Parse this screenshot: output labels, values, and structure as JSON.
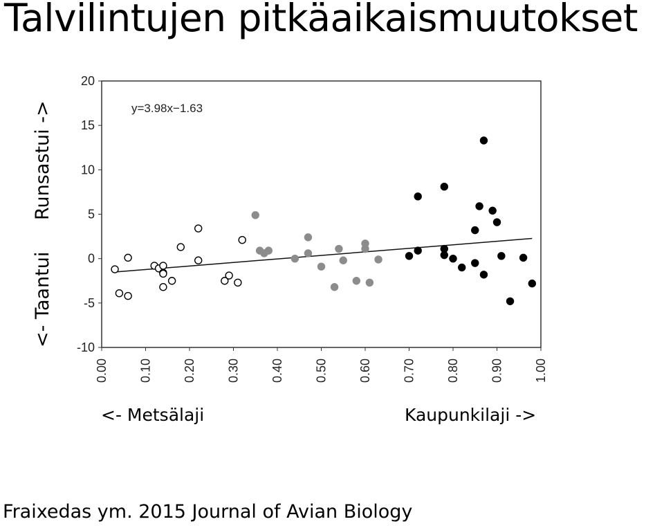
{
  "slide": {
    "title": "Talvilintujen pitkäaikaismuutokset",
    "citation": "Fraixedas ym. 2015 Journal of Avian Biology"
  },
  "axis_labels": {
    "y_up": "Runsastui ->",
    "y_down": "<- Taantui",
    "x_left": "<- Metsälaji",
    "x_right": "Kaupunkilaji ->"
  },
  "chart_data": {
    "type": "scatter",
    "title": "",
    "xlabel": "",
    "ylabel": "",
    "xlim": [
      0.0,
      1.0
    ],
    "ylim": [
      -10,
      20
    ],
    "x_ticks": [
      "0.00",
      "0.10",
      "0.20",
      "0.30",
      "0.40",
      "0.50",
      "0.60",
      "0.70",
      "0.80",
      "0.90",
      "1.00"
    ],
    "y_ticks": [
      "20",
      "15",
      "10",
      "5",
      "0",
      "-5",
      "-10"
    ],
    "grid": false,
    "legend": "none",
    "annotation": "y=3.98x−1.63",
    "trendline": {
      "slope": 3.98,
      "intercept": -1.63
    },
    "colors": {
      "open": "#ffffff",
      "grey": "#8c8c8c",
      "black": "#000000"
    },
    "series": [
      {
        "style": "open",
        "points": [
          [
            0.03,
            -1.2
          ],
          [
            0.04,
            -3.9
          ],
          [
            0.06,
            -4.2
          ],
          [
            0.06,
            0.1
          ],
          [
            0.12,
            -0.8
          ],
          [
            0.13,
            -1.1
          ],
          [
            0.14,
            -0.8
          ],
          [
            0.14,
            -1.6
          ],
          [
            0.14,
            -1.7
          ],
          [
            0.14,
            -3.2
          ],
          [
            0.16,
            -2.5
          ],
          [
            0.18,
            1.3
          ],
          [
            0.22,
            -0.2
          ],
          [
            0.22,
            3.4
          ],
          [
            0.28,
            -2.5
          ],
          [
            0.29,
            -1.9
          ],
          [
            0.31,
            -2.7
          ],
          [
            0.32,
            2.1
          ]
        ]
      },
      {
        "style": "grey",
        "points": [
          [
            0.35,
            4.9
          ],
          [
            0.36,
            0.9
          ],
          [
            0.37,
            0.6
          ],
          [
            0.38,
            0.9
          ],
          [
            0.44,
            0.0
          ],
          [
            0.47,
            2.4
          ],
          [
            0.47,
            0.6
          ],
          [
            0.5,
            -0.9
          ],
          [
            0.53,
            -3.2
          ],
          [
            0.54,
            1.1
          ],
          [
            0.55,
            -0.2
          ],
          [
            0.58,
            -2.5
          ],
          [
            0.6,
            1.7
          ],
          [
            0.6,
            1.1
          ],
          [
            0.61,
            -2.7
          ],
          [
            0.63,
            -0.1
          ]
        ]
      },
      {
        "style": "black",
        "points": [
          [
            0.7,
            0.3
          ],
          [
            0.72,
            7.0
          ],
          [
            0.72,
            0.9
          ],
          [
            0.78,
            8.1
          ],
          [
            0.78,
            1.1
          ],
          [
            0.78,
            0.4
          ],
          [
            0.8,
            0.0
          ],
          [
            0.82,
            -1.0
          ],
          [
            0.85,
            3.2
          ],
          [
            0.85,
            -0.5
          ],
          [
            0.86,
            5.9
          ],
          [
            0.87,
            13.3
          ],
          [
            0.87,
            -1.8
          ],
          [
            0.89,
            5.4
          ],
          [
            0.9,
            4.1
          ],
          [
            0.91,
            0.3
          ],
          [
            0.93,
            -4.8
          ],
          [
            0.96,
            0.1
          ],
          [
            0.98,
            -2.8
          ]
        ]
      }
    ]
  }
}
